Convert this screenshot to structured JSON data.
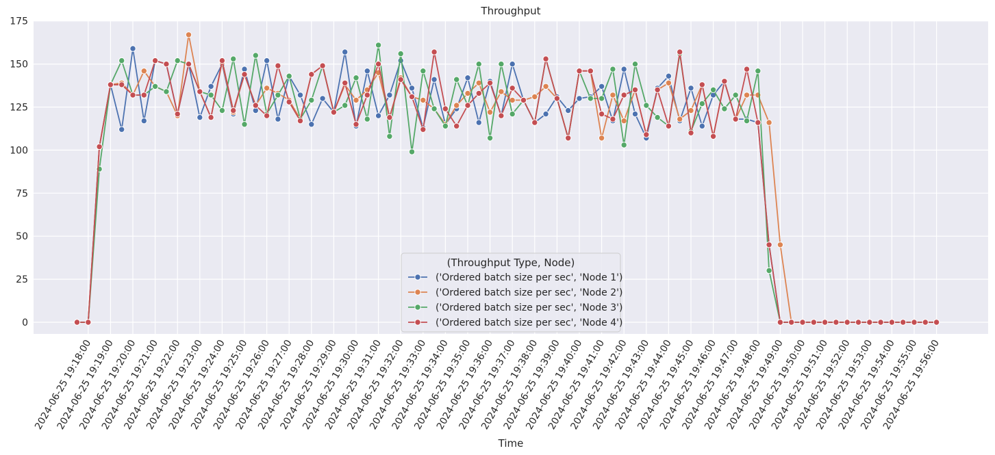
{
  "chart_data": {
    "type": "line",
    "title": "Throughput",
    "xlabel": "Time",
    "ylabel": "",
    "ylim": [
      -7,
      175
    ],
    "yticks": [
      0,
      25,
      50,
      75,
      100,
      125,
      150,
      175
    ],
    "grid": true,
    "legend_position": "bottom-center",
    "legend_title": "(Throughput Type, Node)",
    "x_start": "2024-06-25 19:17:30",
    "x_step_seconds": 30,
    "x_labels": [
      "2024-06-25 19:18:00",
      "2024-06-25 19:19:00",
      "2024-06-25 19:20:00",
      "2024-06-25 19:21:00",
      "2024-06-25 19:22:00",
      "2024-06-25 19:23:00",
      "2024-06-25 19:24:00",
      "2024-06-25 19:25:00",
      "2024-06-25 19:26:00",
      "2024-06-25 19:27:00",
      "2024-06-25 19:28:00",
      "2024-06-25 19:29:00",
      "2024-06-25 19:30:00",
      "2024-06-25 19:31:00",
      "2024-06-25 19:32:00",
      "2024-06-25 19:33:00",
      "2024-06-25 19:34:00",
      "2024-06-25 19:35:00",
      "2024-06-25 19:36:00",
      "2024-06-25 19:37:00",
      "2024-06-25 19:38:00",
      "2024-06-25 19:39:00",
      "2024-06-25 19:40:00",
      "2024-06-25 19:41:00",
      "2024-06-25 19:42:00",
      "2024-06-25 19:43:00",
      "2024-06-25 19:44:00",
      "2024-06-25 19:45:00",
      "2024-06-25 19:46:00",
      "2024-06-25 19:47:00",
      "2024-06-25 19:48:00",
      "2024-06-25 19:49:00",
      "2024-06-25 19:50:00",
      "2024-06-25 19:51:00",
      "2024-06-25 19:52:00",
      "2024-06-25 19:53:00",
      "2024-06-25 19:54:00",
      "2024-06-25 19:55:00",
      "2024-06-25 19:56:00"
    ],
    "series": [
      {
        "name": "('Ordered batch size per sec', 'Node 1')",
        "color": "#4c72b0",
        "values": [
          0,
          0,
          102,
          138,
          112,
          159,
          117,
          152,
          150,
          121,
          150,
          119,
          137,
          150,
          121,
          147,
          123,
          152,
          118,
          143,
          132,
          115,
          130,
          122,
          157,
          114,
          146,
          120,
          132,
          152,
          136,
          113,
          141,
          115,
          124,
          142,
          116,
          140,
          120,
          150,
          129,
          116,
          121,
          131,
          123,
          130,
          131,
          137,
          117,
          147,
          121,
          107,
          136,
          143,
          117,
          136,
          114,
          132,
          140,
          118,
          118,
          116,
          45,
          0,
          0,
          0,
          0,
          0,
          0,
          0,
          0,
          0,
          0,
          0,
          0,
          0,
          0,
          0
        ]
      },
      {
        "name": "('Ordered batch size per sec', 'Node 2')",
        "color": "#dd8452",
        "values": [
          0,
          0,
          102,
          138,
          139,
          132,
          146,
          137,
          134,
          120,
          167,
          134,
          119,
          151,
          122,
          144,
          126,
          136,
          133,
          129,
          118,
          144,
          149,
          122,
          138,
          129,
          135,
          145,
          119,
          142,
          131,
          129,
          124,
          115,
          126,
          133,
          139,
          122,
          134,
          129,
          129,
          131,
          137,
          130,
          107,
          146,
          146,
          107,
          132,
          117,
          135,
          109,
          135,
          139,
          118,
          123,
          138,
          108,
          140,
          118,
          132,
          132,
          116,
          45,
          0,
          0,
          0,
          0,
          0,
          0,
          0,
          0,
          0,
          0,
          0,
          0,
          0,
          0
        ]
      },
      {
        "name": "('Ordered batch size per sec', 'Node 3')",
        "color": "#55a868",
        "values": [
          0,
          0,
          89,
          138,
          152,
          132,
          132,
          137,
          134,
          152,
          150,
          134,
          132,
          123,
          153,
          115,
          155,
          121,
          132,
          143,
          118,
          129,
          149,
          122,
          126,
          142,
          118,
          161,
          108,
          156,
          99,
          146,
          124,
          114,
          141,
          126,
          150,
          107,
          150,
          121,
          129,
          116,
          153,
          130,
          107,
          146,
          130,
          130,
          147,
          103,
          150,
          126,
          119,
          114,
          156,
          111,
          127,
          135,
          124,
          132,
          117,
          146,
          30,
          0,
          0,
          0,
          0,
          0,
          0,
          0,
          0,
          0,
          0,
          0,
          0,
          0,
          0,
          0
        ]
      },
      {
        "name": "('Ordered batch size per sec', 'Node 4')",
        "color": "#c44e52",
        "values": [
          0,
          0,
          102,
          138,
          138,
          132,
          132,
          152,
          150,
          121,
          150,
          134,
          119,
          152,
          123,
          144,
          126,
          120,
          149,
          128,
          117,
          144,
          149,
          122,
          139,
          115,
          132,
          150,
          119,
          141,
          131,
          112,
          157,
          124,
          114,
          126,
          133,
          139,
          120,
          136,
          129,
          116,
          153,
          130,
          107,
          146,
          146,
          121,
          118,
          132,
          135,
          109,
          135,
          114,
          157,
          110,
          138,
          108,
          140,
          118,
          147,
          116,
          45,
          0,
          0,
          0,
          0,
          0,
          0,
          0,
          0,
          0,
          0,
          0,
          0,
          0,
          0,
          0
        ]
      }
    ]
  }
}
